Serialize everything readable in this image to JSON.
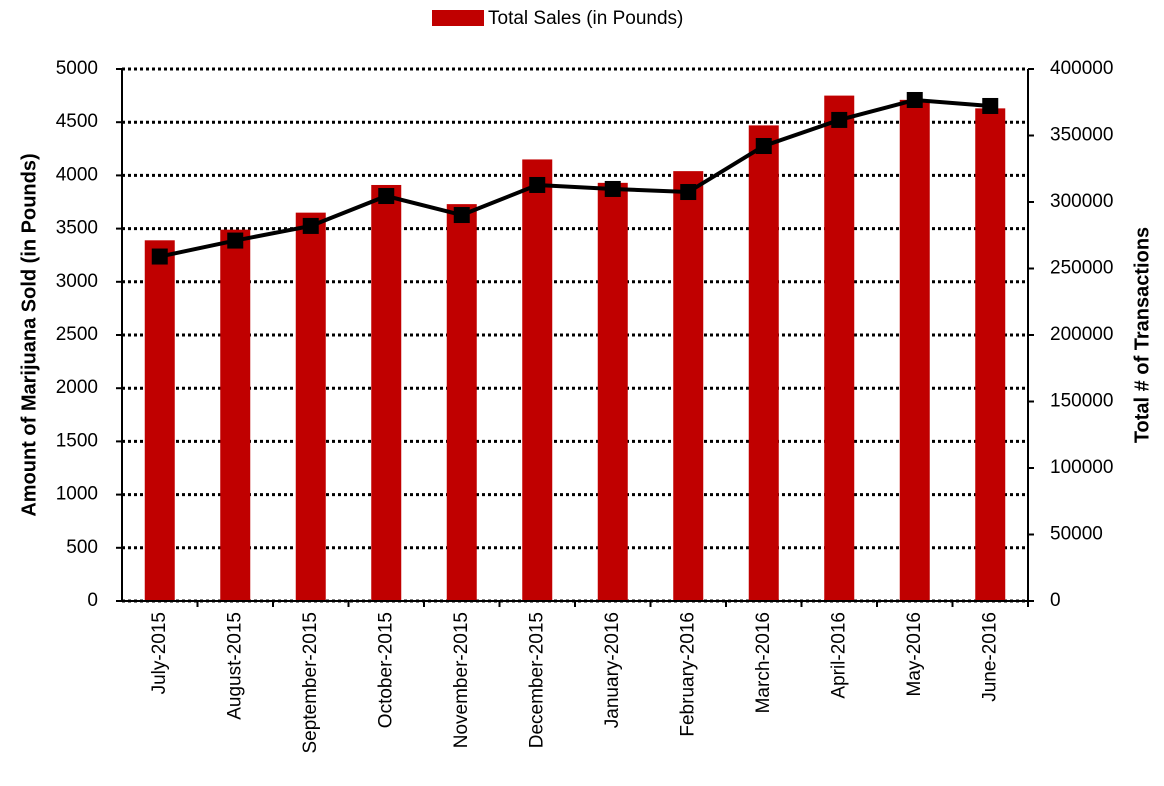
{
  "chart_data": {
    "type": "bar",
    "categories": [
      "July-2015",
      "August-2015",
      "September-2015",
      "October-2015",
      "November-2015",
      "December-2015",
      "January-2016",
      "February-2016",
      "March-2016",
      "April-2016",
      "May-2016",
      "June-2016"
    ],
    "series": [
      {
        "name": "Total Sales (in Pounds)",
        "color": "#c00000",
        "type": "bar",
        "values": [
          3390,
          3490,
          3650,
          3910,
          3730,
          4150,
          3930,
          4040,
          4470,
          4750,
          4710,
          4630
        ]
      },
      {
        "color": "#000000",
        "type": "line",
        "axis": "y2",
        "values": [
          259000,
          271000,
          282000,
          304500,
          290200,
          312800,
          309800,
          307500,
          342100,
          361700,
          376700,
          372200
        ]
      }
    ],
    "ylabel": "Amount of Marijuana Sold (in Pounds)",
    "y2label": "Total # of Transactions",
    "ylim": [
      0,
      5000
    ],
    "yticks": [
      0,
      500,
      1000,
      1500,
      2000,
      2500,
      3000,
      3500,
      4000,
      4500,
      5000
    ],
    "y2lim": [
      0,
      400000
    ],
    "y2ticks": [
      0,
      50000,
      100000,
      150000,
      200000,
      250000,
      300000,
      350000,
      400000
    ],
    "grid": true,
    "legend": "top"
  }
}
